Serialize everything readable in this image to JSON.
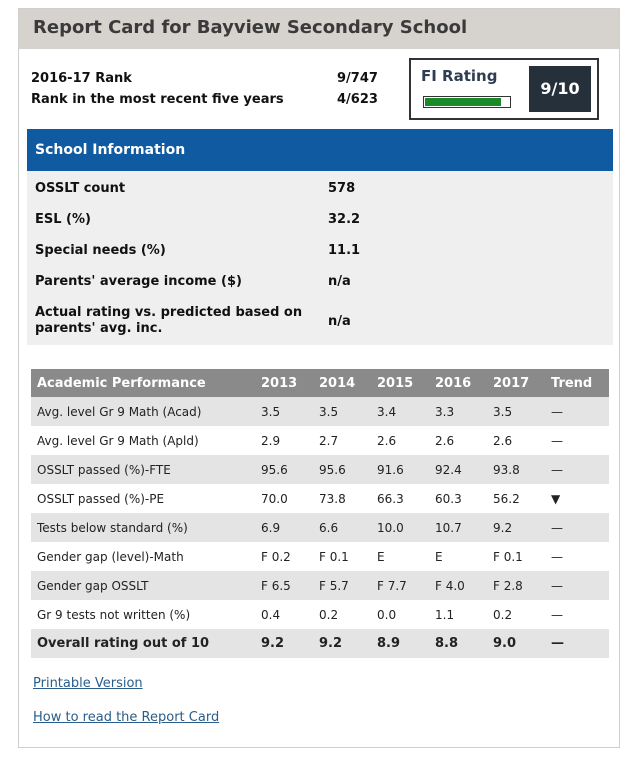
{
  "title": "Report Card for Bayview Secondary School",
  "rank": {
    "current_label": "2016-17 Rank",
    "current_value": "9/747",
    "five_year_label": "Rank in the most recent five years",
    "five_year_value": "4/623"
  },
  "fi_rating": {
    "label": "FI Rating",
    "score": "9/10",
    "fill_fraction": 0.9,
    "fill_color": "#1a8a28"
  },
  "school_info": {
    "header": "School Information",
    "rows": [
      {
        "label": "OSSLT count",
        "value": "578"
      },
      {
        "label": "ESL (%)",
        "value": "32.2"
      },
      {
        "label": "Special needs (%)",
        "value": "11.1"
      },
      {
        "label": "Parents' average income ($)",
        "value": "n/a"
      },
      {
        "label_line1": "Actual rating vs. predicted based on",
        "label_line2": "parents' avg. inc.",
        "value": "n/a"
      }
    ]
  },
  "performance": {
    "headers": [
      "Academic Performance",
      "2013",
      "2014",
      "2015",
      "2016",
      "2017",
      "Trend"
    ],
    "rows": [
      {
        "label": "Avg. level Gr 9 Math (Acad)",
        "values": [
          "3.5",
          "3.5",
          "3.4",
          "3.3",
          "3.5"
        ],
        "trend": "—"
      },
      {
        "label": "Avg. level Gr 9 Math (Apld)",
        "values": [
          "2.9",
          "2.7",
          "2.6",
          "2.6",
          "2.6"
        ],
        "trend": "—"
      },
      {
        "label": "OSSLT passed (%)-FTE",
        "values": [
          "95.6",
          "95.6",
          "91.6",
          "92.4",
          "93.8"
        ],
        "trend": "—"
      },
      {
        "label": "OSSLT passed (%)-PE",
        "values": [
          "70.0",
          "73.8",
          "66.3",
          "60.3",
          "56.2"
        ],
        "trend": "▼"
      },
      {
        "label": "Tests below standard (%)",
        "values": [
          "6.9",
          "6.6",
          "10.0",
          "10.7",
          "9.2"
        ],
        "trend": "—"
      },
      {
        "label": "Gender gap (level)-Math",
        "values": [
          "F 0.2",
          "F 0.1",
          "E",
          "E",
          "F 0.1"
        ],
        "trend": "—"
      },
      {
        "label": "Gender gap OSSLT",
        "values": [
          "F 6.5",
          "F 5.7",
          "F 7.7",
          "F 4.0",
          "F 2.8"
        ],
        "trend": "—"
      },
      {
        "label": "Gr 9 tests not written (%)",
        "values": [
          "0.4",
          "0.2",
          "0.0",
          "1.1",
          "0.2"
        ],
        "trend": "—"
      },
      {
        "label": "Overall rating out of 10",
        "values": [
          "9.2",
          "9.2",
          "8.9",
          "8.8",
          "9.0"
        ],
        "trend": "—"
      }
    ]
  },
  "links": {
    "printable": "Printable Version",
    "how_to_read": "How to read the Report Card"
  }
}
